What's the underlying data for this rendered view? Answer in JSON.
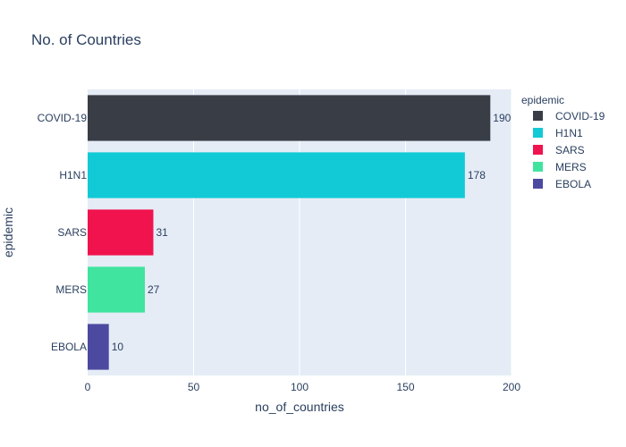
{
  "chart_data": {
    "type": "bar",
    "orientation": "horizontal",
    "title": "No. of Countries",
    "xlabel": "no_of_countries",
    "ylabel": "epidemic",
    "categories": [
      "COVID-19",
      "H1N1",
      "SARS",
      "MERS",
      "EBOLA"
    ],
    "values": [
      190,
      178,
      31,
      27,
      10
    ],
    "data_labels": [
      "190",
      "178",
      "31",
      "27",
      "10"
    ],
    "xlim": [
      0,
      200
    ],
    "x_ticks": [
      "0",
      "50",
      "100",
      "150",
      "200"
    ],
    "grid": true,
    "legend": {
      "title": "epidemic",
      "placement": "top-right",
      "entries": [
        "COVID-19",
        "H1N1",
        "SARS",
        "MERS",
        "EBOLA"
      ]
    },
    "colors": [
      "#393e46",
      "#12cad6",
      "#f0134d",
      "#40e49e",
      "#4c4aa0"
    ],
    "plot_background": "#e5ecf6"
  }
}
